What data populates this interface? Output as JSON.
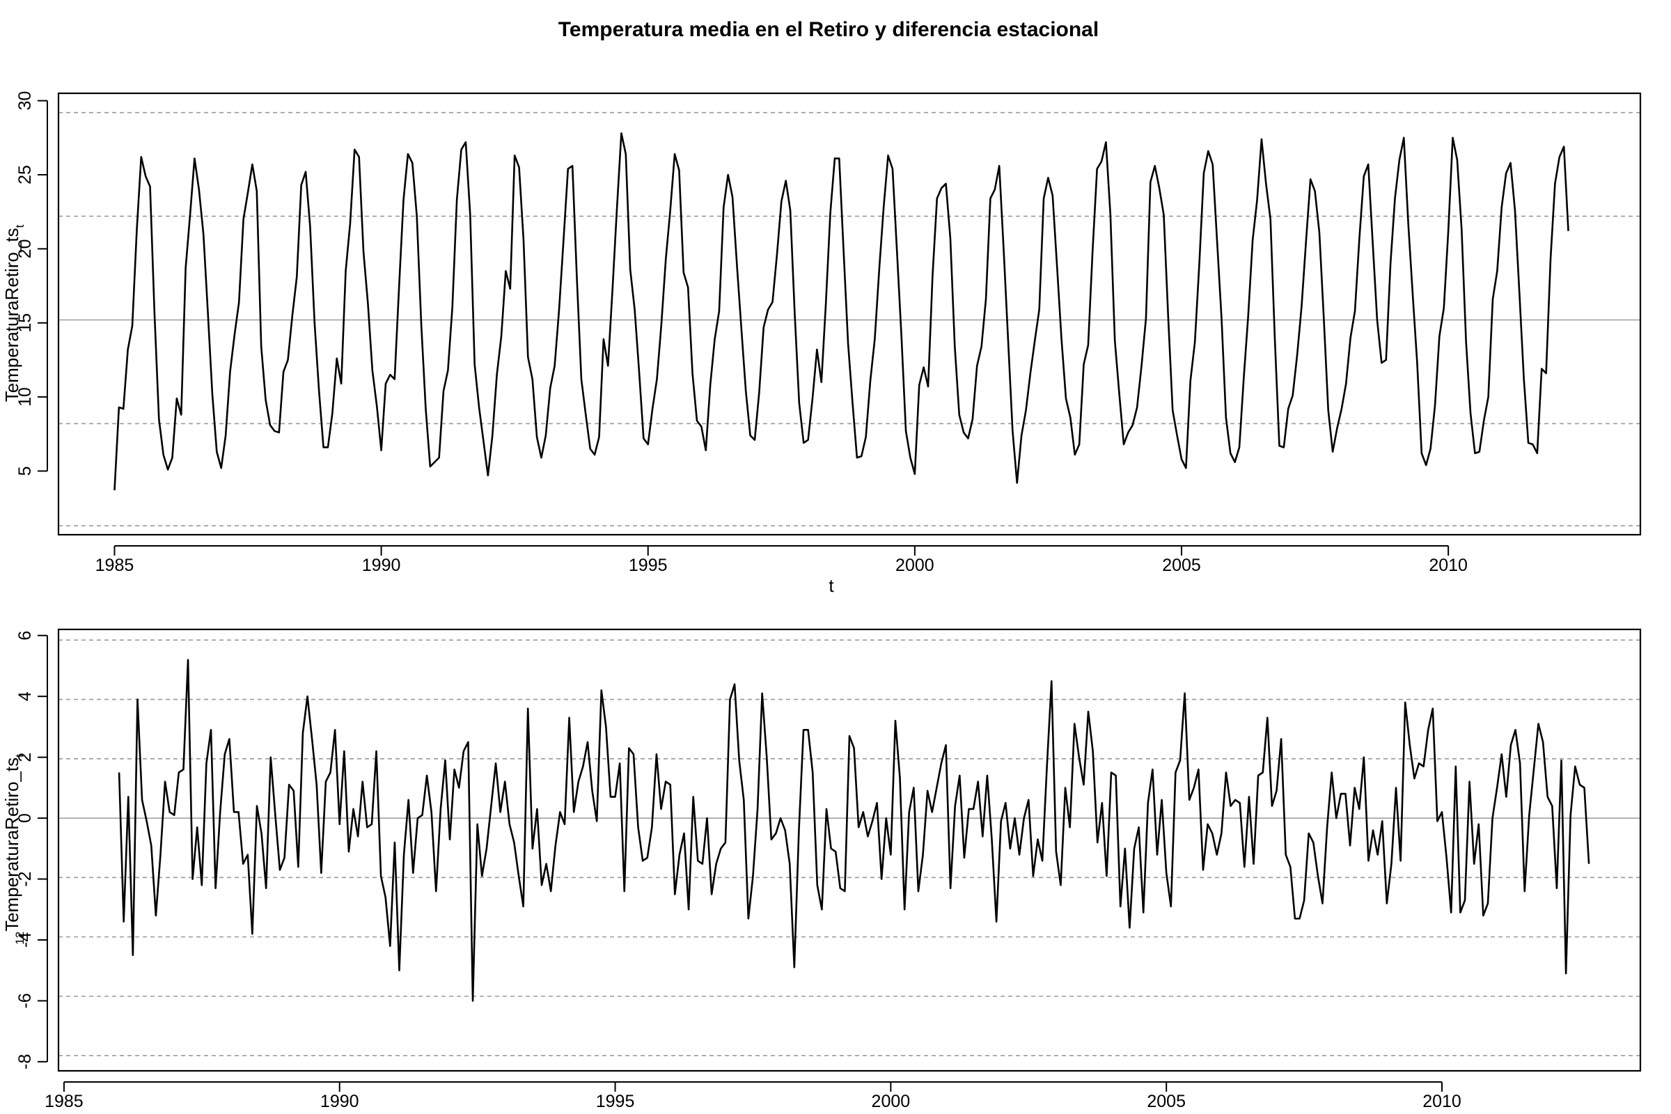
{
  "title": "Temperatura media en el Retiro y diferencia estacional",
  "chart_data": [
    {
      "type": "line",
      "xlabel": "t",
      "ylabel": "TemperaturaRetiro_ts",
      "ylabel_subscript": "t",
      "xlim": [
        1983.95,
        2013.6
      ],
      "ylim": [
        0.7,
        30.5
      ],
      "xticks": [
        1985,
        1990,
        1995,
        2000,
        2005,
        2010
      ],
      "yticks": [
        5,
        10,
        15,
        20,
        25,
        30
      ],
      "hlines_solid": [
        15.2
      ],
      "hlines_dashed": [
        1.3,
        8.2,
        22.2,
        29.2
      ],
      "series": [
        {
          "start": 1985.0,
          "step": 0.083333,
          "color": "#000000",
          "values": [
            3.7,
            9.3,
            9.2,
            13.2,
            14.8,
            21.2,
            26.2,
            24.9,
            24.2,
            15.6,
            8.5,
            6.1,
            5.1,
            5.9,
            9.9,
            8.8,
            18.7,
            22.3,
            26.1,
            24.0,
            21.0,
            15.7,
            10.2,
            6.3,
            5.2,
            7.4,
            11.7,
            14.2,
            16.4,
            22.0,
            23.8,
            25.7,
            23.9,
            13.4,
            9.8,
            8.1,
            7.7,
            7.6,
            11.7,
            12.5,
            15.5,
            18.1,
            24.3,
            25.2,
            21.5,
            15.0,
            10.4,
            6.6,
            6.6,
            8.9,
            12.6,
            10.9,
            18.5,
            21.7,
            26.7,
            26.2,
            19.8,
            16.3,
            11.8,
            9.4,
            6.4,
            10.9,
            11.5,
            11.2,
            17.4,
            23.3,
            26.4,
            25.8,
            22.2,
            14.9,
            9.2,
            5.3,
            5.6,
            5.9,
            10.4,
            11.8,
            16.1,
            23.3,
            26.7,
            27.2,
            22.3,
            12.2,
            9.3,
            7.0,
            4.7,
            7.4,
            11.5,
            14.1,
            18.5,
            17.3,
            26.3,
            25.5,
            20.6,
            12.7,
            11.2,
            7.3,
            5.9,
            7.4,
            10.6,
            12.1,
            15.9,
            20.6,
            25.4,
            25.6,
            18.0,
            11.2,
            8.8,
            6.5,
            6.1,
            7.3,
            13.9,
            12.1,
            17.2,
            22.7,
            27.8,
            26.4,
            18.6,
            15.9,
            11.7,
            7.2,
            6.8,
            9.2,
            11.2,
            14.9,
            19.3,
            22.6,
            26.4,
            25.3,
            18.4,
            17.4,
            11.6,
            8.4,
            8.0,
            6.4,
            10.8,
            13.9,
            15.8,
            22.8,
            25.0,
            23.5,
            18.9,
            14.6,
            10.4,
            7.4,
            7.1,
            10.3,
            14.7,
            15.9,
            16.4,
            19.6,
            23.2,
            24.6,
            22.6,
            15.6,
            9.6,
            6.9,
            7.1,
            9.9,
            13.2,
            11.0,
            16.3,
            22.4,
            26.1,
            26.1,
            19.8,
            13.6,
            9.6,
            5.9,
            6.0,
            7.3,
            11.1,
            13.9,
            18.6,
            22.8,
            26.3,
            25.4,
            19.8,
            14.1,
            7.7,
            5.9,
            4.8,
            10.8,
            12.0,
            10.7,
            18.2,
            23.4,
            24.1,
            24.4,
            20.7,
            13.4,
            8.8,
            7.6,
            7.2,
            8.5,
            12.1,
            13.4,
            16.6,
            23.4,
            24.0,
            25.6,
            19.9,
            13.8,
            7.7,
            4.2,
            7.4,
            9.1,
            11.6,
            13.8,
            15.9,
            23.4,
            24.8,
            23.6,
            18.8,
            13.9,
            9.9,
            8.6,
            6.1,
            6.8,
            12.2,
            13.5,
            19.9,
            25.4,
            25.9,
            27.2,
            22.3,
            13.8,
            10.2,
            6.8,
            7.6,
            8.1,
            9.3,
            12.1,
            15.3,
            24.5,
            25.6,
            24.1,
            22.3,
            15.4,
            9.1,
            7.4,
            5.8,
            5.2,
            11.1,
            13.7,
            19.0,
            25.1,
            26.6,
            25.7,
            20.5,
            15.3,
            8.6,
            6.2,
            5.6,
            6.6,
            11.3,
            15.5,
            20.6,
            23.3,
            27.4,
            24.4,
            22.0,
            13.8,
            6.7,
            6.6,
            9.2,
            10.1,
            12.8,
            16.1,
            20.5,
            24.7,
            23.9,
            21.1,
            15.3,
            9.1,
            6.3,
            7.9,
            9.2,
            10.9,
            14.0,
            15.8,
            20.7,
            24.9,
            25.7,
            20.4,
            15.2,
            12.3,
            12.5,
            19.0,
            23.4,
            26.0,
            27.5,
            21.7,
            16.9,
            12.3,
            6.2,
            5.4,
            6.5,
            9.4,
            14.1,
            16.0,
            21.2,
            27.5,
            26.0,
            21.3,
            13.7,
            8.9,
            6.2,
            6.3,
            8.4,
            10.0,
            16.6,
            18.5,
            22.8,
            25.1,
            25.8,
            22.6,
            17.0,
            11.2,
            6.9,
            6.8,
            6.2,
            11.9,
            11.6,
            19.3,
            24.4,
            26.2,
            26.9,
            21.2
          ]
        }
      ]
    },
    {
      "type": "line",
      "xlabel": "t",
      "ylabel_prefix": "12",
      "ylabel": "TemperaturaRetiro_ts",
      "ylabel_subscript": "t",
      "xlim": [
        1984.9,
        2013.6
      ],
      "ylim": [
        -8.3,
        6.2
      ],
      "xticks": [
        1985,
        1990,
        1995,
        2000,
        2005,
        2010
      ],
      "yticks": [
        -8,
        -6,
        -4,
        -2,
        0,
        2,
        4,
        6
      ],
      "hlines_solid": [
        0
      ],
      "hlines_dashed": [
        -7.8,
        -5.85,
        -3.9,
        -1.95,
        1.95,
        3.9,
        5.85
      ],
      "series": [
        {
          "start": 1986.0,
          "step": 0.083333,
          "color": "#000000",
          "values": [
            1.5,
            -3.4,
            0.7,
            -4.5,
            3.9,
            0.6,
            -0.1,
            -0.9,
            -3.2,
            -1.2,
            1.2,
            0.2,
            0.1,
            1.5,
            1.6,
            5.2,
            -2.0,
            -0.3,
            -2.2,
            1.8,
            2.9,
            -2.3,
            0.2,
            2.1,
            2.6,
            0.2,
            0.2,
            -1.5,
            -1.2,
            -3.8,
            0.4,
            -0.5,
            -2.3,
            2.0,
            0.1,
            -1.7,
            -1.3,
            1.1,
            0.9,
            -1.6,
            2.8,
            4.0,
            2.6,
            1.1,
            -1.8,
            1.2,
            1.5,
            2.9,
            -0.2,
            2.2,
            -1.1,
            0.3,
            -0.6,
            1.2,
            -0.3,
            -0.2,
            2.2,
            -1.9,
            -2.6,
            -4.2,
            -0.8,
            -5.0,
            -1.2,
            0.6,
            -1.8,
            0.0,
            0.1,
            1.4,
            0.2,
            -2.4,
            0.3,
            1.9,
            -0.7,
            1.6,
            1.0,
            2.2,
            2.5,
            -6.0,
            -0.2,
            -1.9,
            -1.0,
            0.4,
            1.8,
            0.2,
            1.2,
            -0.2,
            -0.8,
            -1.9,
            -2.9,
            3.6,
            -1.0,
            0.3,
            -2.2,
            -1.5,
            -2.4,
            -0.9,
            0.2,
            -0.2,
            3.3,
            0.2,
            1.2,
            1.7,
            2.5,
            0.9,
            -0.1,
            4.2,
            3.0,
            0.7,
            0.7,
            1.8,
            -2.4,
            2.3,
            2.1,
            -0.3,
            -1.4,
            -1.3,
            -0.3,
            2.1,
            0.3,
            1.2,
            1.1,
            -2.5,
            -1.2,
            -0.5,
            -3.0,
            0.7,
            -1.4,
            -1.5,
            0.0,
            -2.5,
            -1.5,
            -1.0,
            -0.8,
            3.9,
            4.4,
            1.9,
            0.6,
            -3.3,
            -1.9,
            0.3,
            4.1,
            2.0,
            -0.7,
            -0.5,
            0.0,
            -0.4,
            -1.5,
            -4.9,
            -0.4,
            2.9,
            2.9,
            1.5,
            -2.2,
            -3.0,
            0.3,
            -1.0,
            -1.1,
            -2.3,
            -2.4,
            2.7,
            2.3,
            -0.3,
            0.2,
            -0.6,
            -0.1,
            0.5,
            -2.0,
            0.0,
            -1.2,
            3.2,
            1.3,
            -3.0,
            0.2,
            1.0,
            -2.4,
            -1.2,
            0.9,
            0.2,
            1.0,
            1.8,
            2.4,
            -2.3,
            0.4,
            1.4,
            -1.3,
            0.3,
            0.3,
            1.2,
            -0.6,
            1.4,
            -0.7,
            -3.4,
            -0.1,
            0.5,
            -1.0,
            0.0,
            -1.2,
            0.0,
            0.6,
            -1.9,
            -0.7,
            -1.4,
            1.7,
            4.5,
            -1.1,
            -2.2,
            1.0,
            -0.3,
            3.1,
            2.0,
            1.1,
            3.5,
            2.2,
            -0.8,
            0.5,
            -1.9,
            1.5,
            1.4,
            -2.9,
            -1.0,
            -3.6,
            -1.0,
            -0.3,
            -3.1,
            0.5,
            1.6,
            -1.2,
            0.6,
            -1.8,
            -2.9,
            1.5,
            1.9,
            4.1,
            0.6,
            1.0,
            1.6,
            -1.7,
            -0.2,
            -0.5,
            -1.2,
            -0.5,
            1.5,
            0.4,
            0.6,
            0.5,
            -1.6,
            0.7,
            -1.5,
            1.4,
            1.5,
            3.3,
            0.4,
            0.9,
            2.6,
            -1.2,
            -1.6,
            -3.3,
            -3.3,
            -2.7,
            -0.5,
            -0.8,
            -1.9,
            -2.8,
            -0.3,
            1.5,
            0.0,
            0.8,
            0.8,
            -0.9,
            1.0,
            0.3,
            2.0,
            -1.4,
            -0.4,
            -1.2,
            -0.1,
            -2.8,
            -1.5,
            1.0,
            -1.4,
            3.8,
            2.4,
            1.3,
            1.8,
            1.7,
            2.9,
            3.6,
            -0.1,
            0.2,
            -1.3,
            -3.1,
            1.7,
            -3.1,
            -2.7,
            1.2,
            -1.5,
            -0.2,
            -3.2,
            -2.8,
            0.0,
            1.0,
            2.1,
            0.7,
            2.4,
            2.9,
            1.8,
            -2.4,
            0.1,
            1.6,
            3.1,
            2.5,
            0.7,
            0.4,
            -2.3,
            1.9,
            -5.1,
            0.1,
            1.7,
            1.1,
            1.0,
            -1.5
          ]
        }
      ]
    }
  ]
}
